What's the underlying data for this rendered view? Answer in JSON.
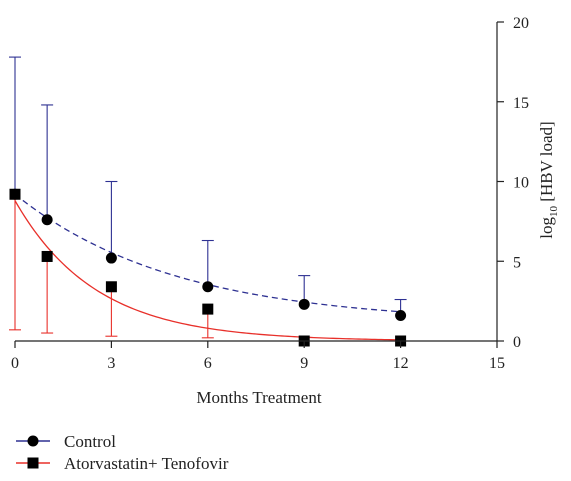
{
  "chart_data": {
    "type": "line",
    "title": "",
    "xlabel": "Months Treatment",
    "ylabel": "log",
    "ylabel_sub": "10",
    "ylabel_rest": " [HBV load]",
    "xlim": [
      0,
      15
    ],
    "ylim": [
      0,
      20
    ],
    "x_ticks": [
      "0",
      "3",
      "6",
      "9",
      "12",
      "15"
    ],
    "y_ticks": [
      "0",
      "5",
      "10",
      "15",
      "20"
    ],
    "y_axis_side": "right",
    "grid": false,
    "legend_position": "bottom-left",
    "series": [
      {
        "name": "Control",
        "marker": "circle",
        "line_style": "dashed",
        "color": "#2e3192",
        "x": [
          0,
          1,
          3,
          6,
          9,
          12
        ],
        "y": [
          9.2,
          7.6,
          5.2,
          3.4,
          2.3,
          1.6
        ],
        "error_upper": [
          17.8,
          14.8,
          10.0,
          6.3,
          4.1,
          2.6
        ],
        "fit": {
          "type": "exponential",
          "y0": 9.2,
          "plateau": 1.1,
          "k": 0.2
        }
      },
      {
        "name": "Atorvastatin+ Tenofovir",
        "marker": "square",
        "line_style": "solid",
        "color": "#e8302a",
        "x": [
          0,
          1,
          3,
          6,
          9,
          12
        ],
        "y": [
          9.2,
          5.3,
          3.4,
          2.0,
          0.0,
          0.0
        ],
        "error_lower": [
          0.7,
          0.5,
          0.3,
          0.2,
          0.0,
          0.0
        ],
        "fit": {
          "type": "exponential",
          "y0": 8.8,
          "plateau": 0.0,
          "k": 0.4
        }
      }
    ]
  }
}
